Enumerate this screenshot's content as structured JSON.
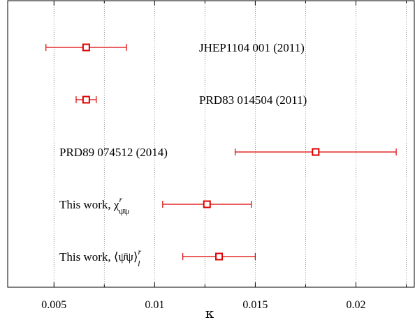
{
  "chart_data": {
    "type": "scatter",
    "xlabel": "κ",
    "xlim": [
      0.0027,
      0.0229
    ],
    "grid": "vertical dotted",
    "color": "#dd0000",
    "xticks": [
      {
        "value": 0.005,
        "label": "0.005"
      },
      {
        "value": 0.01,
        "label": "0.01"
      },
      {
        "value": 0.015,
        "label": "0.015"
      },
      {
        "value": 0.02,
        "label": "0.02"
      }
    ],
    "points": [
      {
        "label": "JHEP1104 001 (2011)",
        "value": 0.0066,
        "err_low": 0.0046,
        "err_high": 0.0086
      },
      {
        "label": "PRD83 014504 (2011)",
        "value": 0.0066,
        "err_low": 0.0061,
        "err_high": 0.0071
      },
      {
        "label": "PRD89 074512 (2014)",
        "value": 0.018,
        "err_low": 0.014,
        "err_high": 0.022
      },
      {
        "label": "This work, χ",
        "label_super": "r",
        "label_sub": "ψ̄ψ",
        "value": 0.0126,
        "err_low": 0.0104,
        "err_high": 0.0148
      },
      {
        "label": "This work, ⟨ψ̄ψ⟩",
        "label_super": "r",
        "label_sub": "l",
        "value": 0.0132,
        "err_low": 0.0114,
        "err_high": 0.015
      }
    ]
  }
}
